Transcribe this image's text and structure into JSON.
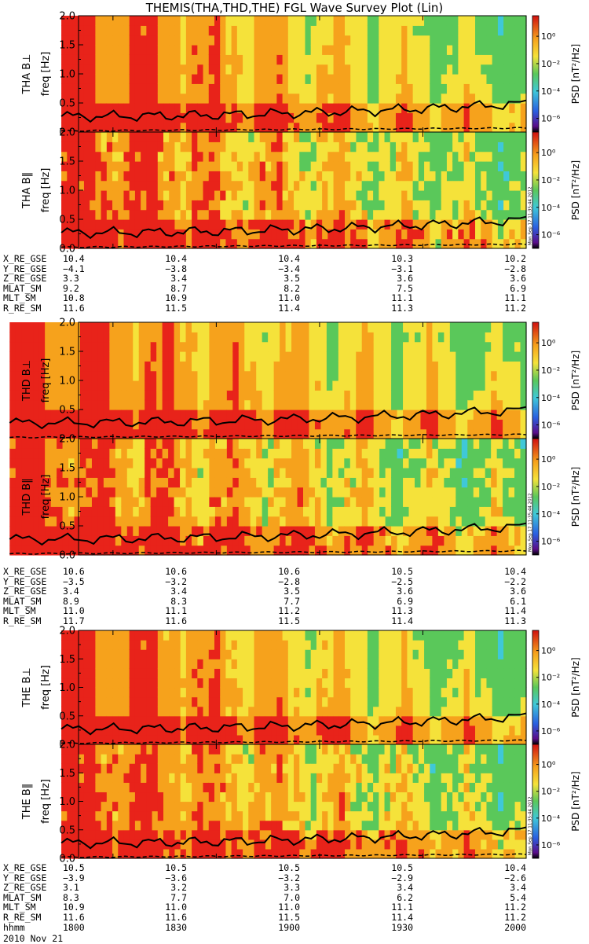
{
  "title": "THEMIS(THA,THD,THE) FGL Wave Survey Plot (Lin)",
  "stamp": "Mon Sep 17 11:35:44 2012",
  "colorbar": {
    "label": "PSD [nT²/Hz]",
    "ticks": [
      "10⁰",
      "10⁻²",
      "10⁻⁴",
      "10⁻⁶"
    ],
    "tick_exponents": [
      0,
      -2,
      -4,
      -6
    ],
    "range_exponents": [
      -7,
      1.5
    ]
  },
  "colors": {
    "red": "#e8231a",
    "orange": "#f6a21c",
    "yellow": "#f5e23a",
    "green": "#5ac85a",
    "cyan": "#3fc8d8",
    "blue": "#2a5fe0"
  },
  "chart_data": [
    {
      "type": "heatmap",
      "title": "THA B⊥",
      "ylabel": "freq [Hz]",
      "yticks": [
        "0.0",
        "0.5",
        "1.0",
        "1.5",
        "2.0"
      ],
      "ylim": [
        0,
        2
      ],
      "data_start": "1745",
      "noise": 0.15,
      "trend": 1,
      "gap": true,
      "rows": 12,
      "cols": 82
    },
    {
      "type": "heatmap",
      "title": "THA B‖",
      "ylabel": "freq [Hz]",
      "yticks": [
        "0.0",
        "0.5",
        "1.0",
        "1.5",
        "2.0"
      ],
      "ylim": [
        0,
        2
      ],
      "data_start": "1745",
      "noise": 0.55,
      "trend": 1,
      "gap": true,
      "rows": 12,
      "cols": 82
    },
    {
      "type": "heatmap",
      "title": "THD B⊥",
      "ylabel": "freq [Hz]",
      "yticks": [
        "0.0",
        "0.5",
        "1.0",
        "1.5",
        "2.0"
      ],
      "ylim": [
        0,
        2
      ],
      "data_start": "1730",
      "noise": 0.1,
      "trend": 0.9,
      "gap": false,
      "rows": 12,
      "cols": 88
    },
    {
      "type": "heatmap",
      "title": "THD B‖",
      "ylabel": "freq [Hz]",
      "yticks": [
        "0.0",
        "0.5",
        "1.0",
        "1.5",
        "2.0"
      ],
      "ylim": [
        0,
        2
      ],
      "data_start": "1730",
      "noise": 0.5,
      "trend": 1,
      "gap": false,
      "rows": 12,
      "cols": 88
    },
    {
      "type": "heatmap",
      "title": "THE B⊥",
      "ylabel": "freq [Hz]",
      "yticks": [
        "0.0",
        "0.5",
        "1.0",
        "1.5",
        "2.0"
      ],
      "ylim": [
        0,
        2
      ],
      "data_start": "1745",
      "noise": 0.15,
      "trend": 1,
      "gap": true,
      "rows": 12,
      "cols": 82
    },
    {
      "type": "heatmap",
      "title": "THE B‖",
      "ylabel": "freq [Hz]",
      "yticks": [
        "0.0",
        "0.5",
        "1.0",
        "1.5",
        "2.0"
      ],
      "ylim": [
        0,
        2
      ],
      "data_start": "1745",
      "noise": 0.55,
      "trend": 1,
      "gap": true,
      "rows": 12,
      "cols": 82
    }
  ],
  "ephemeris": [
    {
      "probe": "THA",
      "rows": [
        {
          "name": "X_RE_GSE",
          "values": [
            "10.4",
            "10.4",
            "10.4",
            "10.3",
            "10.2"
          ]
        },
        {
          "name": "Y_RE_GSE",
          "values": [
            "−4.1",
            "−3.8",
            "−3.4",
            "−3.1",
            "−2.8"
          ]
        },
        {
          "name": "Z_RE_GSE",
          "values": [
            "3.3",
            "3.4",
            "3.5",
            "3.6",
            "3.6"
          ]
        },
        {
          "name": "MLAT_SM",
          "values": [
            "9.2",
            "8.7",
            "8.2",
            "7.5",
            "6.9"
          ]
        },
        {
          "name": "MLT_SM",
          "values": [
            "10.8",
            "10.9",
            "11.0",
            "11.1",
            "11.1"
          ]
        },
        {
          "name": "R_RE_SM",
          "values": [
            "11.6",
            "11.5",
            "11.4",
            "11.3",
            "11.2"
          ]
        }
      ]
    },
    {
      "probe": "THD",
      "rows": [
        {
          "name": "X_RE_GSE",
          "values": [
            "10.6",
            "10.6",
            "10.6",
            "10.5",
            "10.4"
          ]
        },
        {
          "name": "Y_RE_GSE",
          "values": [
            "−3.5",
            "−3.2",
            "−2.8",
            "−2.5",
            "−2.2"
          ]
        },
        {
          "name": "Z_RE_GSE",
          "values": [
            "3.4",
            "3.4",
            "3.5",
            "3.6",
            "3.6"
          ]
        },
        {
          "name": "MLAT_SM",
          "values": [
            "8.9",
            "8.3",
            "7.7",
            "6.9",
            "6.1"
          ]
        },
        {
          "name": "MLT_SM",
          "values": [
            "11.0",
            "11.1",
            "11.2",
            "11.3",
            "11.4"
          ]
        },
        {
          "name": "R_RE_SM",
          "values": [
            "11.7",
            "11.6",
            "11.5",
            "11.4",
            "11.3"
          ]
        }
      ]
    },
    {
      "probe": "THE",
      "rows": [
        {
          "name": "X_RE_GSE",
          "values": [
            "10.5",
            "10.5",
            "10.5",
            "10.5",
            "10.4"
          ]
        },
        {
          "name": "Y_RE_GSE",
          "values": [
            "−3.9",
            "−3.6",
            "−3.2",
            "−2.9",
            "−2.6"
          ]
        },
        {
          "name": "Z_RE_GSE",
          "values": [
            "3.1",
            "3.2",
            "3.3",
            "3.4",
            "3.4"
          ]
        },
        {
          "name": "MLAT_SM",
          "values": [
            "8.3",
            "7.7",
            "7.0",
            "6.2",
            "5.4"
          ]
        },
        {
          "name": "MLT_SM",
          "values": [
            "10.9",
            "11.0",
            "11.0",
            "11.1",
            "11.2"
          ]
        },
        {
          "name": "R_RE_SM",
          "values": [
            "11.6",
            "11.6",
            "11.5",
            "11.4",
            "11.2"
          ]
        },
        {
          "name": "hhmm",
          "values": [
            "1800",
            "1830",
            "1900",
            "1930",
            "2000"
          ]
        }
      ]
    }
  ],
  "date": "2010 Nov 21"
}
